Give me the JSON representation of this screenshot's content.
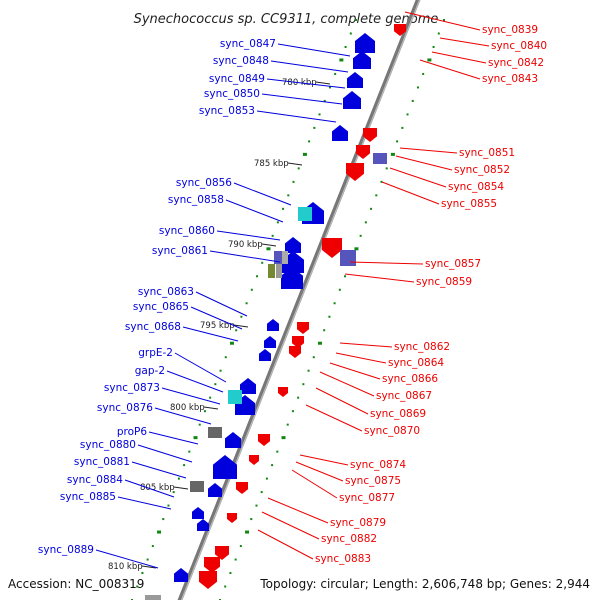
{
  "title": "Synechococcus sp. CC9311, complete genome",
  "footer": {
    "accession": "Accession: NC_008319",
    "topology": "Topology: circular; Length: 2,606,748 bp; Genes: 2,944"
  },
  "colors": {
    "forward": "#0000dd",
    "reverse": "#ee0000",
    "axis": "#888888",
    "gc_dots": "#118811",
    "cyan_feature": "#22cccc",
    "grey_feature": "#666666",
    "purple_feature": "#5555bb",
    "olive_feature": "#778833"
  },
  "kbp_ticks": [
    "780 kbp",
    "785 kbp",
    "790 kbp",
    "795 kbp",
    "800 kbp",
    "805 kbp",
    "810 kbp"
  ],
  "left_labels": [
    "sync_0847",
    "sync_0848",
    "sync_0849",
    "sync_0850",
    "sync_0853",
    "sync_0856",
    "sync_0858",
    "sync_0860",
    "sync_0861",
    "sync_0863",
    "sync_0865",
    "sync_0868",
    "grpE-2",
    "gap-2",
    "sync_0873",
    "sync_0876",
    "proP6",
    "sync_0880",
    "sync_0881",
    "sync_0884",
    "sync_0885",
    "sync_0889"
  ],
  "right_labels": [
    "sync_0839",
    "sync_0840",
    "sync_0842",
    "sync_0843",
    "sync_0851",
    "sync_0852",
    "sync_0854",
    "sync_0855",
    "sync_0857",
    "sync_0859",
    "sync_0862",
    "sync_0864",
    "sync_0866",
    "sync_0867",
    "sync_0869",
    "sync_0870",
    "sync_0874",
    "sync_0875",
    "sync_0877",
    "sync_0879",
    "sync_0882",
    "sync_0883"
  ]
}
